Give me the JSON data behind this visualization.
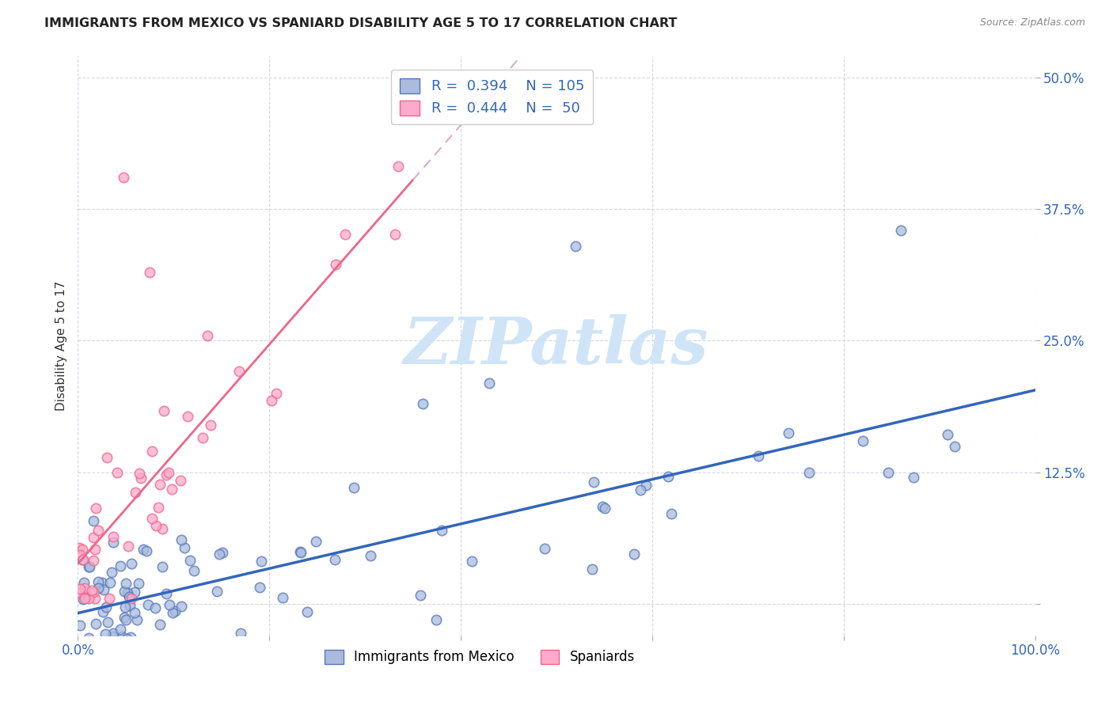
{
  "title": "IMMIGRANTS FROM MEXICO VS SPANIARD DISABILITY AGE 5 TO 17 CORRELATION CHART",
  "source": "Source: ZipAtlas.com",
  "ylabel": "Disability Age 5 to 17",
  "ytick_labels": [
    "",
    "12.5%",
    "25.0%",
    "37.5%",
    "50.0%"
  ],
  "ytick_values": [
    0.0,
    0.125,
    0.25,
    0.375,
    0.5
  ],
  "xlim": [
    0.0,
    1.0
  ],
  "ylim": [
    -0.03,
    0.52
  ],
  "legend_r1": "0.394",
  "legend_n1": "105",
  "legend_r2": "0.444",
  "legend_n2": "50",
  "color_blue_fill": "#AABBDD",
  "color_blue_edge": "#5577BB",
  "color_pink_fill": "#FFAACC",
  "color_pink_edge": "#EE6688",
  "color_line_blue": "#3366BB",
  "color_line_pink": "#EE6688",
  "color_line_pink_dash": "#DDAACC",
  "watermark": "ZIPatlas",
  "watermark_color": "#D0E4F7",
  "background": "#FFFFFF"
}
